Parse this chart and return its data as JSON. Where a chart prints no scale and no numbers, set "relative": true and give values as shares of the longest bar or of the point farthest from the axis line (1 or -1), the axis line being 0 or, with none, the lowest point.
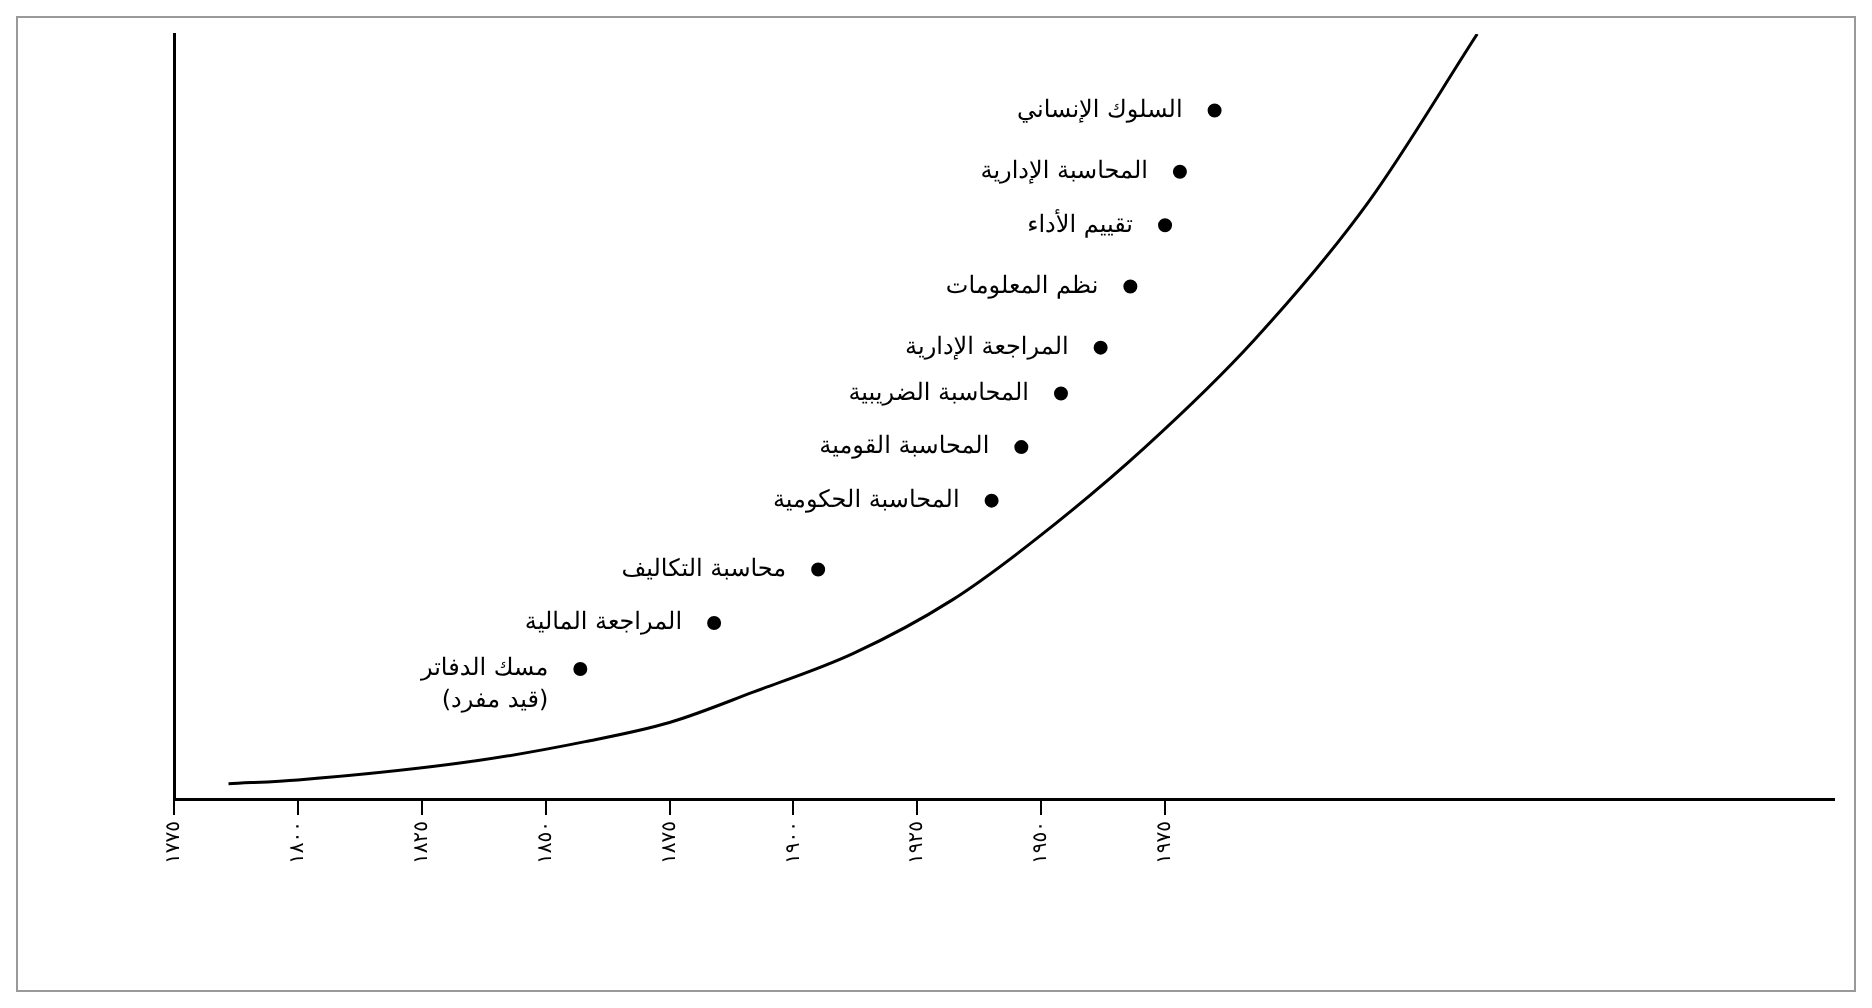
{
  "chart_data": {
    "type": "scatter",
    "relative": true,
    "grid": false,
    "legend": false,
    "xlim": [
      1775,
      2110
    ],
    "xticks": [
      {
        "value": 1775,
        "label": "١٧٧٥"
      },
      {
        "value": 1800,
        "label": "١٨٠٠"
      },
      {
        "value": 1825,
        "label": "١٨٢٥"
      },
      {
        "value": 1850,
        "label": "١٨٥٠"
      },
      {
        "value": 1875,
        "label": "١٨٧٥"
      },
      {
        "value": 1900,
        "label": "١٩٠٠"
      },
      {
        "value": 1925,
        "label": "١٩٢٥"
      },
      {
        "value": 1950,
        "label": "١٩٥٠"
      },
      {
        "value": 1975,
        "label": "١٩٧٥"
      }
    ],
    "series": [
      {
        "marker": "circle",
        "color": "#000000",
        "x": [
          1985,
          1978,
          1975,
          1968,
          1962,
          1954,
          1946,
          1940,
          1905,
          1884,
          1857
        ],
        "values": [
          0.9,
          0.82,
          0.75,
          0.67,
          0.59,
          0.53,
          0.46,
          0.39,
          0.3,
          0.23,
          0.17
        ]
      },
      {
        "type": "line",
        "marker": "none",
        "color": "#000000",
        "x": [
          1786,
          1800,
          1836,
          1858,
          1875,
          1892,
          1912,
          1932,
          1949,
          1971,
          1993,
          2016,
          2038
        ],
        "values": [
          0.02,
          0.025,
          0.05,
          0.075,
          0.1,
          0.14,
          0.19,
          0.26,
          0.34,
          0.46,
          0.6,
          0.78,
          1
        ]
      }
    ],
    "annotations": [
      {
        "text": "السلوك الإنساني",
        "x": 1985,
        "y": 0.9
      },
      {
        "text": "المحاسبة الإدارية",
        "x": 1978,
        "y": 0.82
      },
      {
        "text": "تقييم الأداء",
        "x": 1975,
        "y": 0.75
      },
      {
        "text": "نظم المعلومات",
        "x": 1968,
        "y": 0.67
      },
      {
        "text": "المراجعة الإدارية",
        "x": 1962,
        "y": 0.59
      },
      {
        "text": "المحاسبة الضريبية",
        "x": 1954,
        "y": 0.53
      },
      {
        "text": "المحاسبة القومية",
        "x": 1946,
        "y": 0.46
      },
      {
        "text": "المحاسبة الحكومية",
        "x": 1940,
        "y": 0.39
      },
      {
        "text": "محاسبة التكاليف",
        "x": 1905,
        "y": 0.3
      },
      {
        "text": "المراجعة المالية",
        "x": 1884,
        "y": 0.23
      },
      {
        "text": "مسك الدفاتر\n(قيد مفرد)",
        "x": 1857,
        "y": 0.17
      }
    ]
  }
}
